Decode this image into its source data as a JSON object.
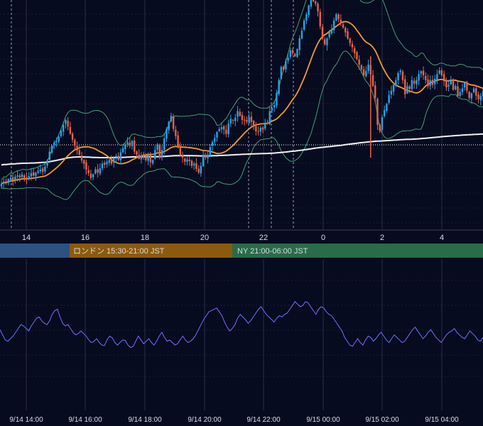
{
  "colors": {
    "background": "#070b1f",
    "grid": "#2a2f48",
    "gridDashed": "#2a2f48",
    "bullCandle": "#29a3e6",
    "bearCandle": "#e8624a",
    "bollinger": "#3fa06f",
    "maShort": "#f39a2c",
    "maLong": "#f2f2f2",
    "reference": "#ffffff",
    "oscillator": "#6b73ff",
    "axisText": "#d8dbe6",
    "sessionTokyo": "#2d5282",
    "sessionLondon": "#8b5a0f",
    "sessionNY": "#2a6b48"
  },
  "chart_data": {
    "type": "candlestick",
    "main_x_ticks": [
      "14",
      "16",
      "18",
      "20",
      "22",
      "0",
      "2",
      "4"
    ],
    "bottom_x_ticks": [
      "9/14 14:00",
      "9/14 16:00",
      "9/14 18:00",
      "9/14 20:00",
      "9/14 22:00",
      "9/15 00:00",
      "9/15 02:00",
      "9/15 04:00"
    ],
    "sessions": [
      {
        "label": ""
      },
      {
        "label": "ロンドン 15:30-21:00 JST"
      },
      {
        "label": "NY 21:00-06:00 JST"
      }
    ],
    "closes": [
      56,
      60,
      58,
      64,
      66,
      62,
      68,
      70,
      67,
      72,
      66,
      64,
      69,
      74,
      70,
      75,
      78,
      80,
      76,
      85,
      95,
      110,
      120,
      125,
      128,
      135,
      145,
      155,
      163,
      152,
      140,
      130,
      120,
      112,
      105,
      95,
      90,
      80,
      74,
      66,
      72,
      80,
      75,
      82,
      90,
      88,
      93,
      96,
      90,
      99,
      103,
      96,
      109,
      116,
      121,
      126,
      120,
      128,
      110,
      105,
      98,
      104,
      100,
      96,
      104,
      92,
      96,
      113,
      121,
      101,
      113,
      132,
      148,
      160,
      170,
      148,
      136,
      118,
      105,
      100,
      93,
      97,
      94,
      86,
      90,
      81,
      75,
      86,
      104,
      100,
      104,
      118,
      126,
      133,
      143,
      148,
      151,
      147,
      140,
      157,
      165,
      162,
      167,
      178,
      170,
      163,
      162,
      160,
      168,
      160,
      152,
      144,
      143,
      150,
      147,
      156,
      158,
      178,
      183,
      188,
      208,
      230,
      252,
      247,
      262,
      268,
      280,
      275,
      270,
      282,
      300,
      313,
      330,
      340,
      355,
      370,
      362,
      358,
      345,
      320,
      300,
      290,
      300,
      310,
      315,
      330,
      340,
      332,
      325,
      318,
      310,
      300,
      292,
      285,
      275,
      265,
      256,
      248,
      238,
      245,
      256,
      240,
      220,
      200,
      155,
      145,
      168,
      180,
      190,
      205,
      212,
      222,
      230,
      242,
      246,
      230,
      206,
      220,
      215,
      230,
      224,
      230,
      240,
      245,
      238,
      230,
      220,
      230,
      222,
      232,
      240,
      246,
      238,
      228,
      218,
      222,
      230,
      214,
      220,
      203,
      210,
      216,
      226,
      212,
      200,
      208,
      216,
      204,
      198,
      204,
      212
    ],
    "osc": [
      210,
      190,
      170,
      165,
      175,
      185,
      200,
      215,
      230,
      225,
      215,
      205,
      225,
      240,
      255,
      260,
      245,
      235,
      230,
      245,
      270,
      285,
      290,
      260,
      235,
      225,
      230,
      215,
      200,
      190,
      195,
      205,
      195,
      185,
      170,
      160,
      165,
      175,
      160,
      150,
      148,
      170,
      185,
      178,
      160,
      150,
      160,
      170,
      168,
      150,
      140,
      145,
      165,
      185,
      170,
      155,
      165,
      175,
      160,
      150,
      165,
      185,
      200,
      180,
      165,
      170,
      160,
      150,
      155,
      170,
      185,
      170,
      160,
      165,
      175,
      190,
      210,
      230,
      250,
      265,
      280,
      285,
      290,
      295,
      280,
      265,
      240,
      220,
      205,
      215,
      230,
      255,
      270,
      260,
      250,
      235,
      245,
      260,
      275,
      290,
      300,
      285,
      270,
      260,
      250,
      240,
      255,
      265,
      260,
      270,
      275,
      290,
      305,
      320,
      310,
      300,
      305,
      320,
      315,
      300,
      285,
      270,
      290,
      300,
      295,
      280,
      270,
      265,
      250,
      235,
      220,
      205,
      180,
      165,
      150,
      145,
      160,
      175,
      160,
      150,
      170,
      185,
      180,
      165,
      175,
      190,
      200,
      185,
      170,
      160,
      175,
      190,
      180,
      170,
      160,
      165,
      180,
      195,
      210,
      220,
      205,
      190,
      175,
      185,
      200,
      210,
      195,
      180,
      170,
      160,
      175,
      190,
      200,
      205,
      215,
      200,
      190,
      180,
      175,
      190,
      205,
      195,
      185,
      170,
      165,
      180
    ]
  }
}
